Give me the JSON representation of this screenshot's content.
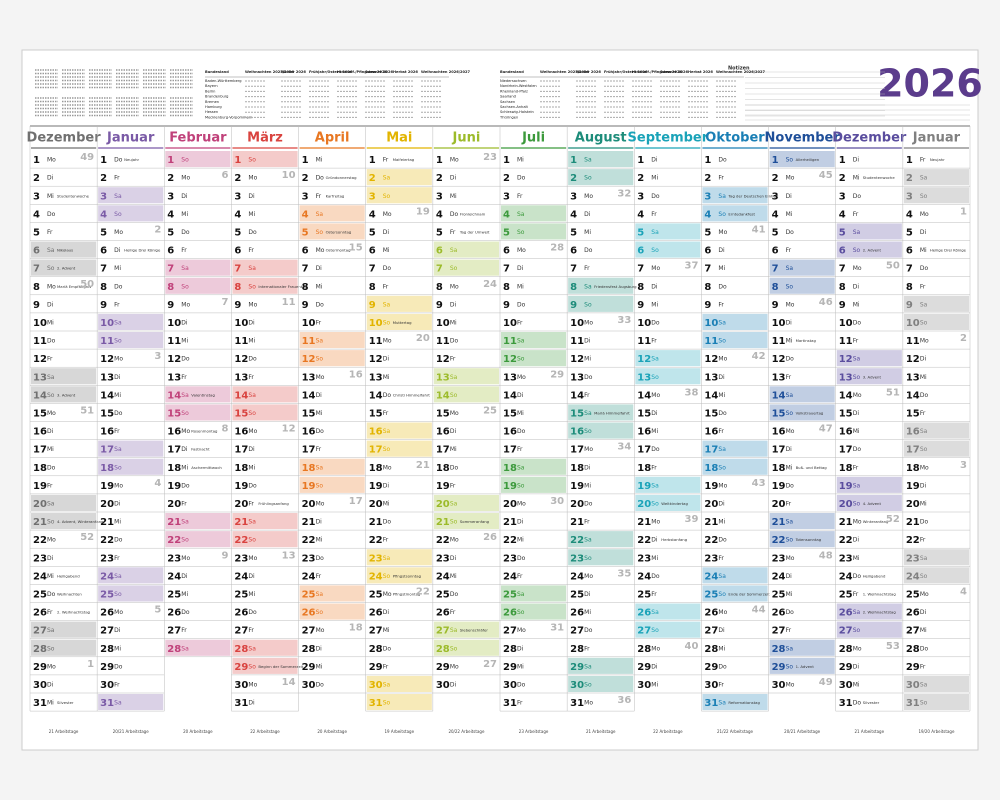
{
  "header": {
    "year": "2026",
    "notes_label": "Notizen",
    "holiday_columns": [
      "Bundesland",
      "Weihnachten 2025/2026",
      "Winter 2026",
      "Frühjahr/Ostern 2026",
      "Himmelf./Pfingsten 2026",
      "Sommer 2026",
      "Herbst 2026",
      "Weihnachten 2026/2027"
    ],
    "states_left": [
      "Baden-Württemberg",
      "Bayern",
      "Berlin",
      "Brandenburg",
      "Bremen",
      "Hamburg",
      "Hessen",
      "Mecklenburg-Vorpommern"
    ],
    "states_right": [
      "Niedersachsen",
      "Nordrhein-Westfalen",
      "Rheinland-Pfalz",
      "Saarland",
      "Sachsen",
      "Sachsen-Anhalt",
      "Schleswig-Holstein",
      "Thüringen"
    ]
  },
  "calendar": {
    "shade_weekdays": [
      "Sa",
      "So"
    ],
    "months": [
      {
        "name": "Dezember",
        "color": "#707070",
        "footer": "21 Arbeitstage",
        "days": [
          1,
          2,
          3,
          4,
          5,
          6,
          7,
          8,
          9,
          10,
          11,
          12,
          13,
          14,
          15,
          16,
          17,
          18,
          19,
          20,
          21,
          22,
          23,
          24,
          25,
          26,
          27,
          28,
          29,
          30,
          31
        ],
        "weekdays": [
          "Mo",
          "Di",
          "Mi",
          "Do",
          "Fr",
          "Sa",
          "So",
          "Mo",
          "Di",
          "Mi",
          "Do",
          "Fr",
          "Sa",
          "So",
          "Mo",
          "Di",
          "Mi",
          "Do",
          "Fr",
          "Sa",
          "So",
          "Mo",
          "Di",
          "Mi",
          "Do",
          "Fr",
          "Sa",
          "So",
          "Mo",
          "Di",
          "Mi"
        ],
        "weeks": {
          "0": 49,
          "7": 50,
          "14": 51,
          "21": 52,
          "28": 1
        },
        "notes": {
          "2": "Studentenwoche",
          "5": "Nikolaus",
          "6": "2. Advent",
          "7": "Mariä Empfängnis",
          "13": "3. Advent",
          "20": "4. Advent, Winteranfang",
          "23": "Heiligabend",
          "24": "Weihnachten",
          "25": "2. Weihnachtstag",
          "30": "Silvester"
        }
      },
      {
        "name": "Januar",
        "color": "#7a5aa6",
        "footer": "20/21 Arbeitstage",
        "days": [
          1,
          2,
          3,
          4,
          5,
          6,
          7,
          8,
          9,
          10,
          11,
          12,
          13,
          14,
          15,
          16,
          17,
          18,
          19,
          20,
          21,
          22,
          23,
          24,
          25,
          26,
          27,
          28,
          29,
          30,
          31
        ],
        "weekdays": [
          "Do",
          "Fr",
          "Sa",
          "So",
          "Mo",
          "Di",
          "Mi",
          "Do",
          "Fr",
          "Sa",
          "So",
          "Mo",
          "Di",
          "Mi",
          "Do",
          "Fr",
          "Sa",
          "So",
          "Mo",
          "Di",
          "Mi",
          "Do",
          "Fr",
          "Sa",
          "So",
          "Mo",
          "Di",
          "Mi",
          "Do",
          "Fr",
          "Sa"
        ],
        "weeks": {
          "4": 2,
          "11": 3,
          "18": 4,
          "25": 5
        },
        "notes": {
          "0": "Neujahr",
          "5": "Heilige Drei Könige"
        }
      },
      {
        "name": "Februar",
        "color": "#c0417a",
        "footer": "20 Arbeitstage",
        "days": [
          1,
          2,
          3,
          4,
          5,
          6,
          7,
          8,
          9,
          10,
          11,
          12,
          13,
          14,
          15,
          16,
          17,
          18,
          19,
          20,
          21,
          22,
          23,
          24,
          25,
          26,
          27,
          28
        ],
        "weekdays": [
          "So",
          "Mo",
          "Di",
          "Mi",
          "Do",
          "Fr",
          "Sa",
          "So",
          "Mo",
          "Di",
          "Mi",
          "Do",
          "Fr",
          "Sa",
          "So",
          "Mo",
          "Di",
          "Mi",
          "Do",
          "Fr",
          "Sa",
          "So",
          "Mo",
          "Di",
          "Mi",
          "Do",
          "Fr",
          "Sa"
        ],
        "weeks": {
          "1": 6,
          "8": 7,
          "15": 8,
          "22": 9
        },
        "notes": {
          "13": "Valentinstag",
          "15": "Rosenmontag",
          "16": "Fastnacht",
          "17": "Aschermittwoch"
        }
      },
      {
        "name": "März",
        "color": "#d9433f",
        "footer": "22 Arbeitstage",
        "days": [
          1,
          2,
          3,
          4,
          5,
          6,
          7,
          8,
          9,
          10,
          11,
          12,
          13,
          14,
          15,
          16,
          17,
          18,
          19,
          20,
          21,
          22,
          23,
          24,
          25,
          26,
          27,
          28,
          29,
          30,
          31
        ],
        "weekdays": [
          "So",
          "Mo",
          "Di",
          "Mi",
          "Do",
          "Fr",
          "Sa",
          "So",
          "Mo",
          "Di",
          "Mi",
          "Do",
          "Fr",
          "Sa",
          "So",
          "Mo",
          "Di",
          "Mi",
          "Do",
          "Fr",
          "Sa",
          "So",
          "Mo",
          "Di",
          "Mi",
          "Do",
          "Fr",
          "Sa",
          "So",
          "Mo",
          "Di"
        ],
        "weeks": {
          "1": 10,
          "8": 11,
          "15": 12,
          "22": 13,
          "29": 14
        },
        "notes": {
          "7": "Internationaler Frauentag",
          "19": "Frühlingsanfang",
          "28": "Beginn der Sommerzeit"
        }
      },
      {
        "name": "April",
        "color": "#e87722",
        "footer": "20 Arbeitstage",
        "days": [
          1,
          2,
          3,
          4,
          5,
          6,
          7,
          8,
          9,
          10,
          11,
          12,
          13,
          14,
          15,
          16,
          17,
          18,
          19,
          20,
          21,
          22,
          23,
          24,
          25,
          26,
          27,
          28,
          29,
          30
        ],
        "weekdays": [
          "Mi",
          "Do",
          "Fr",
          "Sa",
          "So",
          "Mo",
          "Di",
          "Mi",
          "Do",
          "Fr",
          "Sa",
          "So",
          "Mo",
          "Di",
          "Mi",
          "Do",
          "Fr",
          "Sa",
          "So",
          "Mo",
          "Di",
          "Mi",
          "Do",
          "Fr",
          "Sa",
          "So",
          "Mo",
          "Di",
          "Mi",
          "Do"
        ],
        "weeks": {
          "5": 15,
          "12": 16,
          "19": 17,
          "26": 18
        },
        "notes": {
          "1": "Gründonnerstag",
          "2": "Karfreitag",
          "4": "Ostersonntag",
          "5": "Ostermontag"
        }
      },
      {
        "name": "Mai",
        "color": "#e2b400",
        "footer": "19 Arbeitstage",
        "days": [
          1,
          2,
          3,
          4,
          5,
          6,
          7,
          8,
          9,
          10,
          11,
          12,
          13,
          14,
          15,
          16,
          17,
          18,
          19,
          20,
          21,
          22,
          23,
          24,
          25,
          26,
          27,
          28,
          29,
          30,
          31
        ],
        "weekdays": [
          "Fr",
          "Sa",
          "So",
          "Mo",
          "Di",
          "Mi",
          "Do",
          "Fr",
          "Sa",
          "So",
          "Mo",
          "Di",
          "Mi",
          "Do",
          "Fr",
          "Sa",
          "So",
          "Mo",
          "Di",
          "Mi",
          "Do",
          "Fr",
          "Sa",
          "So",
          "Mo",
          "Di",
          "Mi",
          "Do",
          "Fr",
          "Sa",
          "So"
        ],
        "weeks": {
          "3": 19,
          "10": 20,
          "17": 21,
          "24": 22
        },
        "notes": {
          "0": "Maifeiertag",
          "9": "Muttertag",
          "13": "Christi Himmelfahrt",
          "23": "Pfingstsonntag",
          "24": "Pfingstmontag"
        }
      },
      {
        "name": "Juni",
        "color": "#9cbb2a",
        "footer": "20/22 Arbeitstage",
        "days": [
          1,
          2,
          3,
          4,
          5,
          6,
          7,
          8,
          9,
          10,
          11,
          12,
          13,
          14,
          15,
          16,
          17,
          18,
          19,
          20,
          21,
          22,
          23,
          24,
          25,
          26,
          27,
          28,
          29,
          30
        ],
        "weekdays": [
          "Mo",
          "Di",
          "Mi",
          "Do",
          "Fr",
          "Sa",
          "So",
          "Mo",
          "Di",
          "Mi",
          "Do",
          "Fr",
          "Sa",
          "So",
          "Mo",
          "Di",
          "Mi",
          "Do",
          "Fr",
          "Sa",
          "So",
          "Mo",
          "Di",
          "Mi",
          "Do",
          "Fr",
          "Sa",
          "So",
          "Mo",
          "Di"
        ],
        "weeks": {
          "0": 23,
          "7": 24,
          "14": 25,
          "21": 26,
          "28": 27
        },
        "notes": {
          "3": "Fronleichnam",
          "4": "Tag der Umwelt",
          "20": "Sommeranfang",
          "26": "Siebenschläfer"
        }
      },
      {
        "name": "Juli",
        "color": "#3c9a3c",
        "footer": "23 Arbeitstage",
        "days": [
          1,
          2,
          3,
          4,
          5,
          6,
          7,
          8,
          9,
          10,
          11,
          12,
          13,
          14,
          15,
          16,
          17,
          18,
          19,
          20,
          21,
          22,
          23,
          24,
          25,
          26,
          27,
          28,
          29,
          30,
          31
        ],
        "weekdays": [
          "Mi",
          "Do",
          "Fr",
          "Sa",
          "So",
          "Mo",
          "Di",
          "Mi",
          "Do",
          "Fr",
          "Sa",
          "So",
          "Mo",
          "Di",
          "Mi",
          "Do",
          "Fr",
          "Sa",
          "So",
          "Mo",
          "Di",
          "Mi",
          "Do",
          "Fr",
          "Sa",
          "So",
          "Mo",
          "Di",
          "Mi",
          "Do",
          "Fr"
        ],
        "weeks": {
          "5": 28,
          "12": 29,
          "19": 30,
          "26": 31
        },
        "notes": {}
      },
      {
        "name": "August",
        "color": "#1d8c7a",
        "footer": "21 Arbeitstage",
        "days": [
          1,
          2,
          3,
          4,
          5,
          6,
          7,
          8,
          9,
          10,
          11,
          12,
          13,
          14,
          15,
          16,
          17,
          18,
          19,
          20,
          21,
          22,
          23,
          24,
          25,
          26,
          27,
          28,
          29,
          30,
          31
        ],
        "weekdays": [
          "Sa",
          "So",
          "Mo",
          "Di",
          "Mi",
          "Do",
          "Fr",
          "Sa",
          "So",
          "Mo",
          "Di",
          "Mi",
          "Do",
          "Fr",
          "Sa",
          "So",
          "Mo",
          "Di",
          "Mi",
          "Do",
          "Fr",
          "Sa",
          "So",
          "Mo",
          "Di",
          "Mi",
          "Do",
          "Fr",
          "Sa",
          "So",
          "Mo"
        ],
        "weeks": {
          "2": 32,
          "9": 33,
          "16": 34,
          "23": 35,
          "30": 36
        },
        "notes": {
          "7": "Friedensfest Augsburg",
          "14": "Mariä Himmelfahrt"
        }
      },
      {
        "name": "September",
        "color": "#1aa3b8",
        "footer": "22 Arbeitstage",
        "days": [
          1,
          2,
          3,
          4,
          5,
          6,
          7,
          8,
          9,
          10,
          11,
          12,
          13,
          14,
          15,
          16,
          17,
          18,
          19,
          20,
          21,
          22,
          23,
          24,
          25,
          26,
          27,
          28,
          29,
          30
        ],
        "weekdays": [
          "Di",
          "Mi",
          "Do",
          "Fr",
          "Sa",
          "So",
          "Mo",
          "Di",
          "Mi",
          "Do",
          "Fr",
          "Sa",
          "So",
          "Mo",
          "Di",
          "Mi",
          "Do",
          "Fr",
          "Sa",
          "So",
          "Mo",
          "Di",
          "Mi",
          "Do",
          "Fr",
          "Sa",
          "So",
          "Mo",
          "Di",
          "Mi"
        ],
        "weeks": {
          "6": 37,
          "13": 38,
          "20": 39,
          "27": 40
        },
        "notes": {
          "19": "Weltkindertag",
          "21": "Herbstanfang"
        }
      },
      {
        "name": "Oktober",
        "color": "#1a7fb5",
        "footer": "21/22 Arbeitstage",
        "days": [
          1,
          2,
          3,
          4,
          5,
          6,
          7,
          8,
          9,
          10,
          11,
          12,
          13,
          14,
          15,
          16,
          17,
          18,
          19,
          20,
          21,
          22,
          23,
          24,
          25,
          26,
          27,
          28,
          29,
          30,
          31
        ],
        "weekdays": [
          "Do",
          "Fr",
          "Sa",
          "So",
          "Mo",
          "Di",
          "Mi",
          "Do",
          "Fr",
          "Sa",
          "So",
          "Mo",
          "Di",
          "Mi",
          "Do",
          "Fr",
          "Sa",
          "So",
          "Mo",
          "Di",
          "Mi",
          "Do",
          "Fr",
          "Sa",
          "So",
          "Mo",
          "Di",
          "Mi",
          "Do",
          "Fr",
          "Sa"
        ],
        "weeks": {
          "4": 41,
          "11": 42,
          "18": 43,
          "25": 44
        },
        "notes": {
          "2": "Tag der Deutschen Einheit",
          "3": "Erntedankfest",
          "24": "Ende der Sommerzeit",
          "30": "Reformationstag"
        }
      },
      {
        "name": "November",
        "color": "#1f4f99",
        "footer": "20/21 Arbeitstage",
        "days": [
          1,
          2,
          3,
          4,
          5,
          6,
          7,
          8,
          9,
          10,
          11,
          12,
          13,
          14,
          15,
          16,
          17,
          18,
          19,
          20,
          21,
          22,
          23,
          24,
          25,
          26,
          27,
          28,
          29,
          30
        ],
        "weekdays": [
          "So",
          "Mo",
          "Di",
          "Mi",
          "Do",
          "Fr",
          "Sa",
          "So",
          "Mo",
          "Di",
          "Mi",
          "Do",
          "Fr",
          "Sa",
          "So",
          "Mo",
          "Di",
          "Mi",
          "Do",
          "Fr",
          "Sa",
          "So",
          "Mo",
          "Di",
          "Mi",
          "Do",
          "Fr",
          "Sa",
          "So",
          "Mo"
        ],
        "weeks": {
          "1": 45,
          "8": 46,
          "15": 47,
          "22": 48,
          "29": 49
        },
        "notes": {
          "0": "Allerheiligen",
          "10": "Martinstag",
          "14": "Volkstrauertag",
          "17": "Buß- und Bettag",
          "21": "Totensonntag",
          "28": "1. Advent"
        }
      },
      {
        "name": "Dezember",
        "color": "#5a4d9e",
        "footer": "21 Arbeitstage",
        "days": [
          1,
          2,
          3,
          4,
          5,
          6,
          7,
          8,
          9,
          10,
          11,
          12,
          13,
          14,
          15,
          16,
          17,
          18,
          19,
          20,
          21,
          22,
          23,
          24,
          25,
          26,
          27,
          28,
          29,
          30,
          31
        ],
        "weekdays": [
          "Di",
          "Mi",
          "Do",
          "Fr",
          "Sa",
          "So",
          "Mo",
          "Di",
          "Mi",
          "Do",
          "Fr",
          "Sa",
          "So",
          "Mo",
          "Di",
          "Mi",
          "Do",
          "Fr",
          "Sa",
          "So",
          "Mo",
          "Di",
          "Mi",
          "Do",
          "Fr",
          "Sa",
          "So",
          "Mo",
          "Di",
          "Mi",
          "Do"
        ],
        "weeks": {
          "6": 50,
          "13": 51,
          "20": 52,
          "27": 53
        },
        "notes": {
          "1": "Studentenwoche",
          "5": "2. Advent",
          "12": "3. Advent",
          "19": "4. Advent",
          "20": "Winteranfang",
          "23": "Heiligabend",
          "24": "1. Weihnachtstag",
          "25": "2. Weihnachtstag",
          "30": "Silvester"
        }
      },
      {
        "name": "Januar",
        "color": "#808080",
        "footer": "19/20 Arbeitstage",
        "days": [
          1,
          2,
          3,
          4,
          5,
          6,
          7,
          8,
          9,
          10,
          11,
          12,
          13,
          14,
          15,
          16,
          17,
          18,
          19,
          20,
          21,
          22,
          23,
          24,
          25,
          26,
          27,
          28,
          29,
          30,
          31
        ],
        "weekdays": [
          "Fr",
          "Sa",
          "So",
          "Mo",
          "Di",
          "Mi",
          "Do",
          "Fr",
          "Sa",
          "So",
          "Mo",
          "Di",
          "Mi",
          "Do",
          "Fr",
          "Sa",
          "So",
          "Mo",
          "Di",
          "Mi",
          "Do",
          "Fr",
          "Sa",
          "So",
          "Mo",
          "Di",
          "Mi",
          "Do",
          "Fr",
          "Sa",
          "So"
        ],
        "weeks": {
          "3": 1,
          "10": 2,
          "17": 3,
          "24": 4
        },
        "notes": {
          "0": "Neujahr",
          "5": "Heilige Drei Könige"
        }
      }
    ]
  }
}
